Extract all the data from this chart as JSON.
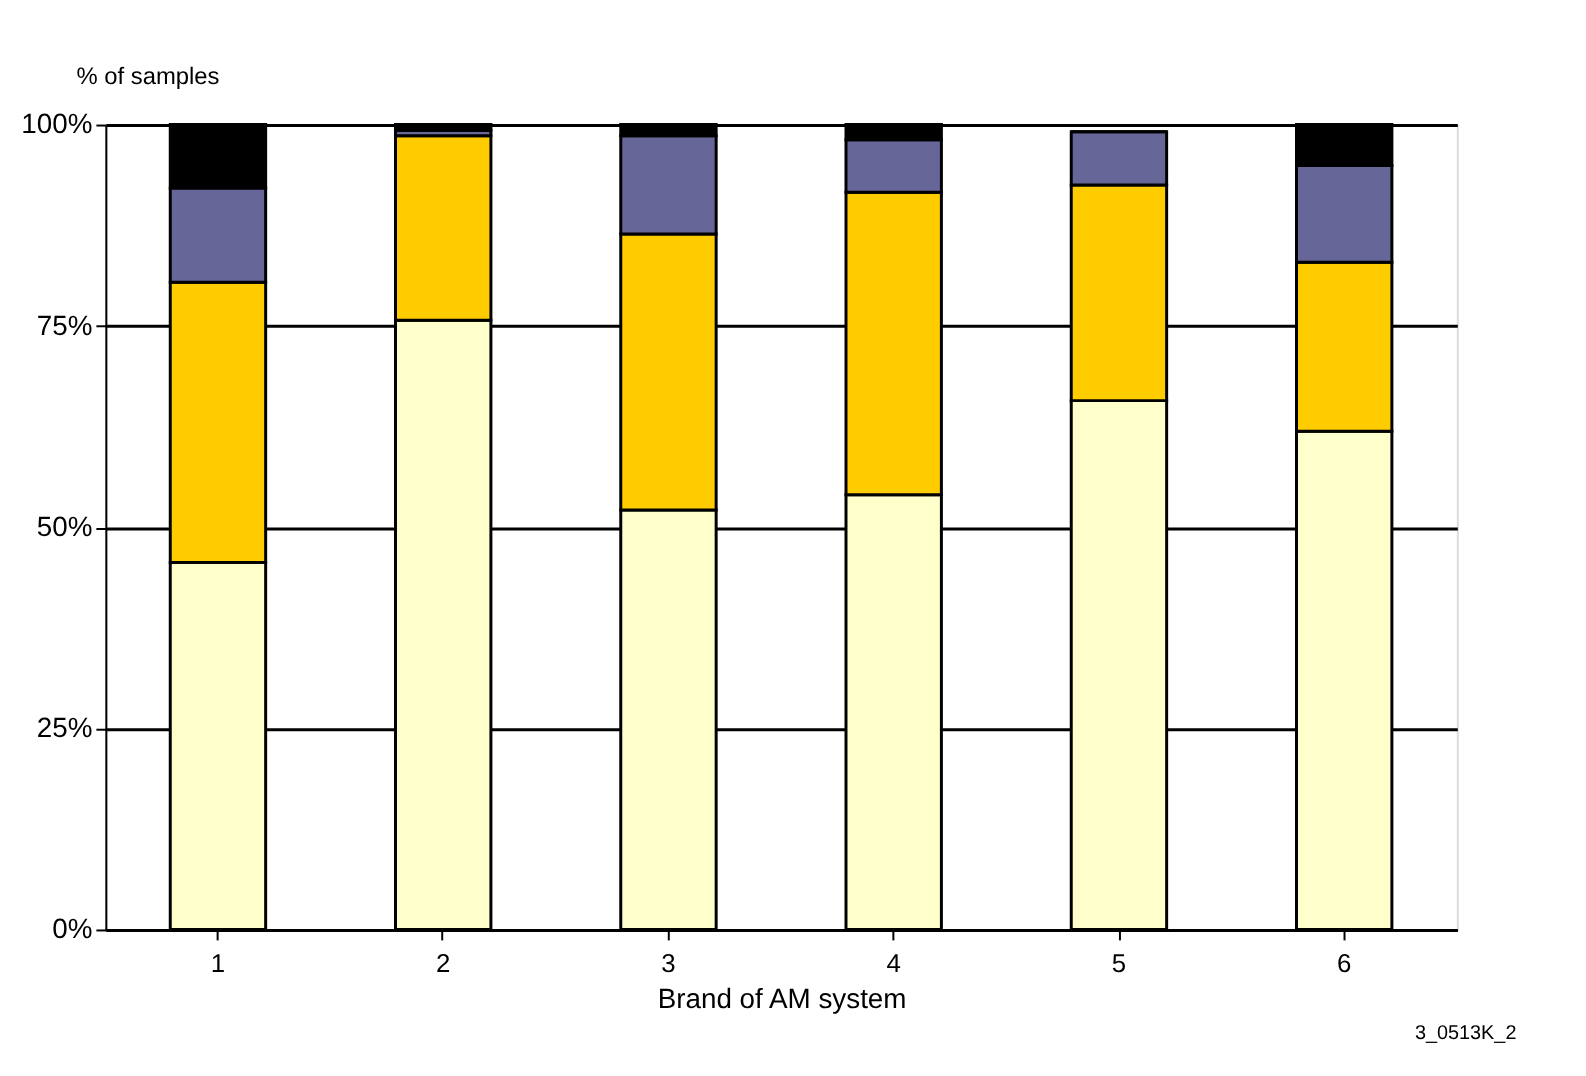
{
  "chart_data": {
    "type": "bar",
    "stacked": true,
    "ylabel": "% of samples",
    "xlabel": "Brand of AM system",
    "categories": [
      "1",
      "2",
      "3",
      "4",
      "5",
      "6"
    ],
    "series": [
      {
        "color": "#ffffcc",
        "values": [
          45.6,
          75.7,
          52.1,
          54.0,
          65.7,
          61.9
        ]
      },
      {
        "color": "#ffcc00",
        "values": [
          34.8,
          22.9,
          34.3,
          37.6,
          26.8,
          21.0
        ]
      },
      {
        "color": "#666699",
        "values": [
          11.7,
          0.7,
          12.2,
          6.5,
          6.6,
          12.0
        ]
      },
      {
        "color": "#000000",
        "values": [
          7.9,
          0.7,
          1.4,
          1.9,
          0,
          5.1
        ]
      }
    ],
    "ylim": [
      0,
      100
    ],
    "yticks": [
      {
        "value": 0,
        "label": "0%"
      },
      {
        "value": 25,
        "label": "25%"
      },
      {
        "value": 50,
        "label": "50%"
      },
      {
        "value": 75,
        "label": "75%"
      },
      {
        "value": 100,
        "label": "100%"
      }
    ],
    "grid": "y",
    "annotations": [
      "3_0513K_2"
    ]
  }
}
